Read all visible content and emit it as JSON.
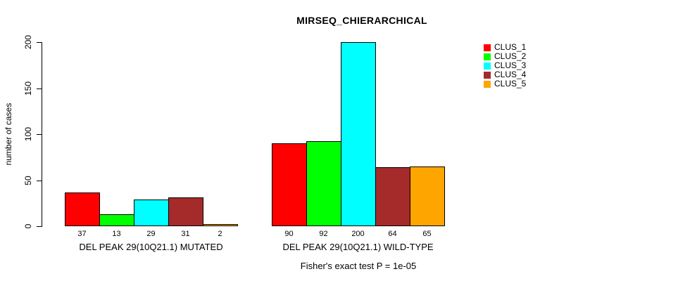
{
  "chart_data": {
    "type": "bar",
    "title": "MIRSEQ_CHIERARCHICAL",
    "ylabel": "number of cases",
    "ylim": [
      0,
      200
    ],
    "yticks": [
      0,
      50,
      100,
      150,
      200
    ],
    "grid": false,
    "legend_position": "top-right-inside",
    "series_names": [
      "CLUS_1",
      "CLUS_2",
      "CLUS_3",
      "CLUS_4",
      "CLUS_5"
    ],
    "series_colors": [
      "#ff0000",
      "#00ff00",
      "#00ffff",
      "#a52a2a",
      "#ffa500"
    ],
    "bar_border_color": "#000000",
    "groups": [
      {
        "label": "DEL PEAK 29(10Q21.1) MUTATED",
        "values": [
          37,
          13,
          29,
          31,
          2
        ]
      },
      {
        "label": "DEL PEAK 29(10Q21.1) WILD-TYPE",
        "values": [
          90,
          92,
          200,
          64,
          65
        ]
      }
    ],
    "footnote": "Fisher's exact test P = 1e-05"
  }
}
